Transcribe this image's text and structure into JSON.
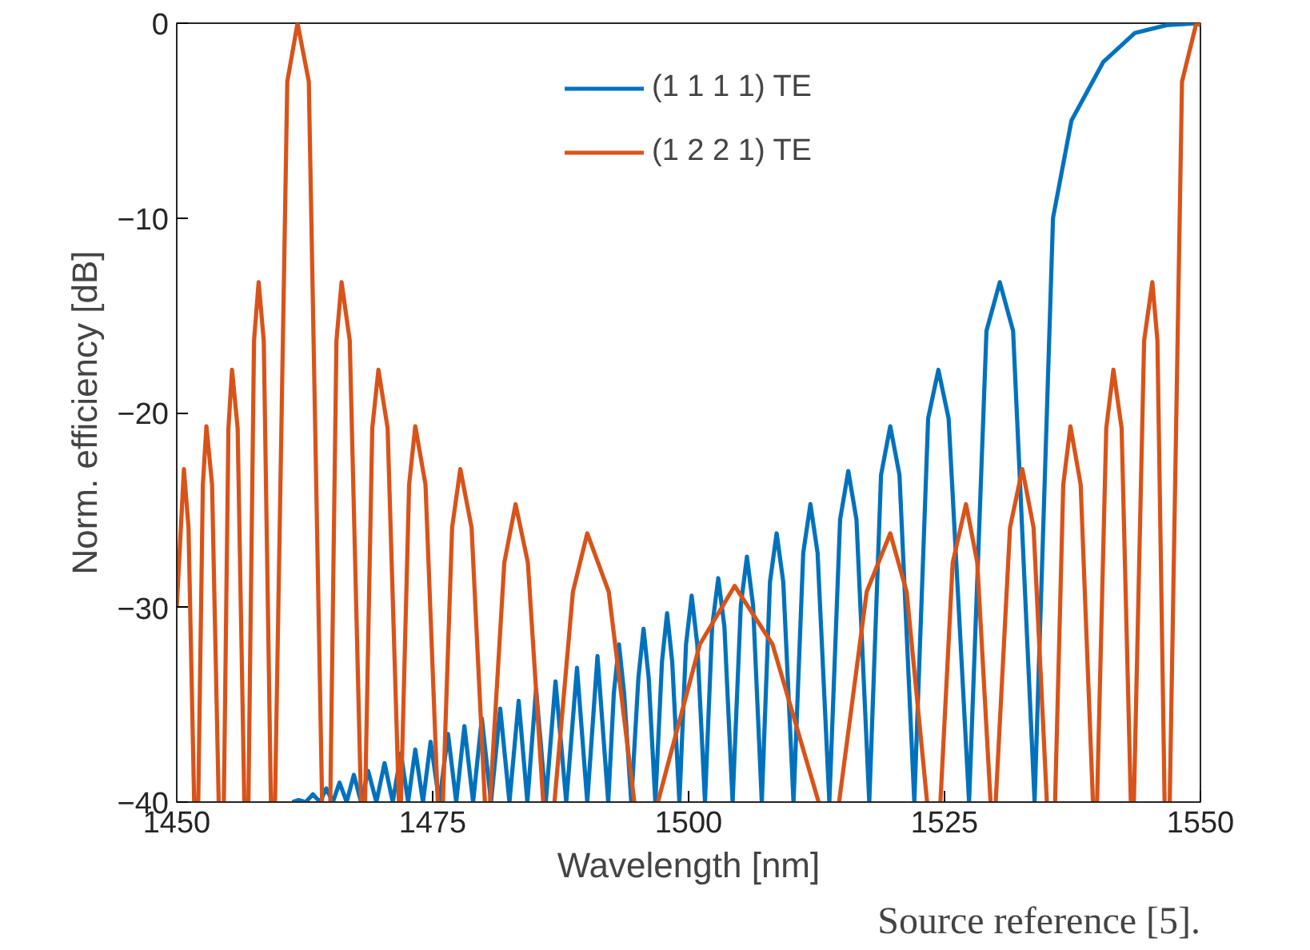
{
  "chart_data": {
    "type": "line",
    "xlabel": "Wavelength [nm]",
    "ylabel": "Norm. efficiency [dB]",
    "xlim": [
      1450,
      1550
    ],
    "ylim": [
      -40,
      0
    ],
    "xticks": [
      1450,
      1475,
      1500,
      1525,
      1550
    ],
    "yticks": [
      -40,
      -30,
      -20,
      -10,
      0
    ],
    "grid": false,
    "legend": "top",
    "annotations": [
      "Source reference [5]."
    ],
    "series": [
      {
        "name": "(1 1 1 1) TE",
        "color": "#0072bd",
        "x": [
          1461.3,
          1461.9,
          1462.6,
          1463.3,
          1464.0,
          1464.6,
          1465.25,
          1465.9,
          1466.6,
          1467.3,
          1468.0,
          1468.7,
          1469.5,
          1470.3,
          1471.1,
          1471.9,
          1472.6,
          1473.3,
          1474.05,
          1474.8,
          1475.65,
          1476.5,
          1477.3,
          1478.1,
          1478.95,
          1479.8,
          1480.7,
          1481.6,
          1482.5,
          1483.4,
          1484.25,
          1485.1,
          1486.05,
          1487.0,
          1488.05,
          1489.1,
          1490.1,
          1491.1,
          1492.15,
          1492.7,
          1493.2,
          1493.7,
          1494.4,
          1495.1,
          1495.6,
          1496.1,
          1496.75,
          1497.4,
          1497.9,
          1498.4,
          1499.1,
          1499.75,
          1500.3,
          1500.85,
          1501.6,
          1502.3,
          1502.9,
          1503.5,
          1504.3,
          1505.1,
          1505.7,
          1506.3,
          1507.15,
          1507.95,
          1508.6,
          1509.25,
          1510.25,
          1511.2,
          1511.9,
          1512.6,
          1513.75,
          1514.8,
          1515.6,
          1516.4,
          1517.65,
          1518.8,
          1519.7,
          1520.6,
          1522.05,
          1523.4,
          1524.4,
          1525.4,
          1527.4,
          1529.1,
          1530.4,
          1531.7,
          1533.8,
          1535.6,
          1537.4,
          1540.5,
          1543.6,
          1546.7,
          1550
        ],
        "values": [
          -40,
          -39.9,
          -40,
          -39.6,
          -40,
          -39.3,
          -40,
          -39.0,
          -40,
          -38.6,
          -40,
          -38.4,
          -40,
          -38.0,
          -40,
          -37.5,
          -40,
          -37.3,
          -40,
          -36.9,
          -40,
          -36.5,
          -40,
          -36.1,
          -40,
          -35.7,
          -40,
          -35.2,
          -40,
          -34.8,
          -40,
          -34.2,
          -40,
          -33.8,
          -40,
          -33.1,
          -40,
          -32.5,
          -40,
          -34.4,
          -31.9,
          -34.4,
          -40,
          -33.6,
          -31.1,
          -33.6,
          -40,
          -32.8,
          -30.3,
          -32.8,
          -40,
          -31.9,
          -29.4,
          -31.9,
          -40,
          -31.0,
          -28.5,
          -31.0,
          -40,
          -29.9,
          -27.4,
          -29.9,
          -40,
          -28.7,
          -26.2,
          -28.7,
          -40,
          -27.2,
          -24.7,
          -27.2,
          -40,
          -25.5,
          -23.0,
          -25.5,
          -40,
          -23.2,
          -20.7,
          -23.2,
          -40,
          -20.3,
          -17.8,
          -20.3,
          -40,
          -15.8,
          -13.3,
          -15.8,
          -40,
          -10,
          -5,
          -2,
          -0.5,
          -0.1,
          0
        ]
      },
      {
        "name": "(1 2 2 1) TE",
        "color": "#d95319",
        "x": [
          1450,
          1450.7,
          1451.15,
          1451.7,
          null,
          1452.1,
          1452.55,
          1452.9,
          1453.45,
          1454.1,
          null,
          1454.6,
          1455.05,
          1455.4,
          1455.95,
          1456.6,
          null,
          1457.0,
          1457.55,
          1458.0,
          1458.5,
          1459.2,
          null,
          1459.6,
          1460.8,
          1461.8,
          1462.9,
          1464.2,
          null,
          1465.0,
          1465.6,
          1466.1,
          1466.9,
          1468.0,
          null,
          1468.4,
          1469.1,
          1469.7,
          1470.6,
          1471.7,
          null,
          1471.9,
          1472.7,
          1473.3,
          1474.3,
          1475.5,
          null,
          1476.0,
          1476.9,
          1477.7,
          1478.8,
          1480.1,
          null,
          1480.6,
          1482.0,
          1483.1,
          1484.3,
          1485.8,
          null,
          1486.9,
          1488.7,
          1490.1,
          1492.2,
          1494.7,
          null,
          1497.0,
          1501.1,
          1504.5,
          1508.2,
          1512.7,
          null,
          1514.7,
          1517.4,
          1519.7,
          1521.3,
          1523.3,
          null,
          1524.6,
          1525.8,
          1527.1,
          1528.2,
          1529.5,
          null,
          1530.0,
          1531.4,
          1532.6,
          1533.7,
          1535.0,
          null,
          1535.8,
          1536.6,
          1537.3,
          1538.3,
          1539.5,
          null,
          1539.9,
          1540.8,
          1541.5,
          1542.3,
          1543.2,
          null,
          1543.5,
          1544.5,
          1545.3,
          1545.8,
          1546.5,
          null,
          1547.0,
          1548.2,
          1549.6,
          1550
        ],
        "values": [
          -30,
          -22.9,
          -25.9,
          -40,
          null,
          -40,
          -23.7,
          -20.7,
          -23.7,
          -40,
          null,
          -40,
          -20.8,
          -17.8,
          -20.8,
          -40,
          null,
          -40,
          -16.3,
          -13.3,
          -16.3,
          -40,
          null,
          -40,
          -3,
          0,
          -3,
          -40,
          null,
          -40,
          -16.3,
          -13.3,
          -16.3,
          -40,
          null,
          -40,
          -20.8,
          -17.8,
          -20.8,
          -40,
          null,
          -40,
          -23.7,
          -20.7,
          -23.7,
          -40,
          null,
          -40,
          -25.9,
          -22.9,
          -25.9,
          -40,
          null,
          -40,
          -27.7,
          -24.7,
          -27.7,
          -40,
          null,
          -40,
          -29.2,
          -26.2,
          -29.2,
          -40,
          null,
          -40,
          -31.9,
          -28.9,
          -31.9,
          -40,
          null,
          -40,
          -29.2,
          -26.2,
          -29.2,
          -40,
          null,
          -40,
          -27.7,
          -24.7,
          -27.7,
          -40,
          null,
          -40,
          -25.9,
          -22.9,
          -25.9,
          -40,
          null,
          -40,
          -23.7,
          -20.7,
          -23.7,
          -40,
          null,
          -40,
          -20.8,
          -17.8,
          -20.8,
          -40,
          null,
          -40,
          -16.3,
          -13.3,
          -16.3,
          -40,
          null,
          -40,
          -3,
          0,
          -0.1
        ]
      }
    ]
  }
}
